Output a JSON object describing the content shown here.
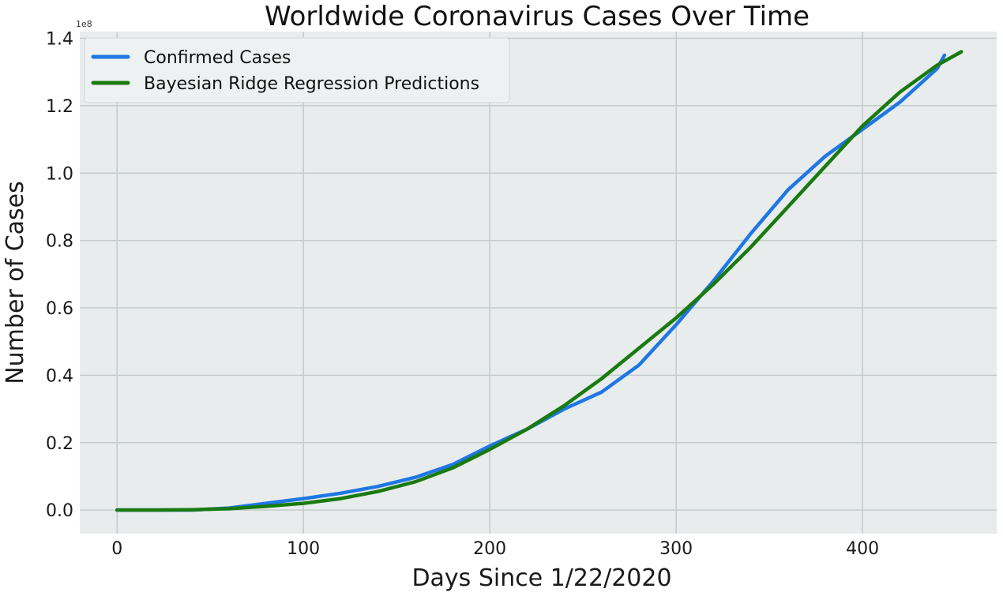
{
  "chart_data": {
    "type": "line",
    "title": "Worldwide Coronavirus Cases Over Time",
    "xlabel": "Days Since 1/22/2020",
    "ylabel": "Number of Cases",
    "y_exponent_label": "1e8",
    "xlim": [
      -20,
      472
    ],
    "ylim": [
      -0.07,
      1.42
    ],
    "y_scale_factor": 100000000,
    "xticks": [
      0,
      100,
      200,
      300,
      400
    ],
    "xtick_labels": [
      "0",
      "100",
      "200",
      "300",
      "400"
    ],
    "yticks": [
      0.0,
      0.2,
      0.4,
      0.6,
      0.8,
      1.0,
      1.2,
      1.4
    ],
    "ytick_labels": [
      "0.0",
      "0.2",
      "0.4",
      "0.6",
      "0.8",
      "1.0",
      "1.2",
      "1.4"
    ],
    "grid": true,
    "legend_position": "top-left",
    "series": [
      {
        "name": "Confirmed Cases",
        "color": "#1f77e4",
        "x": [
          0,
          20,
          40,
          60,
          80,
          100,
          120,
          140,
          160,
          180,
          200,
          220,
          240,
          260,
          280,
          300,
          320,
          340,
          360,
          380,
          400,
          420,
          440,
          444
        ],
        "y": [
          0.0,
          0.0,
          0.0,
          0.006,
          0.02,
          0.034,
          0.05,
          0.07,
          0.097,
          0.135,
          0.19,
          0.24,
          0.3,
          0.35,
          0.43,
          0.55,
          0.68,
          0.82,
          0.95,
          1.05,
          1.13,
          1.21,
          1.31,
          1.35
        ]
      },
      {
        "name": "Bayesian Ridge Regression Predictions",
        "color": "#197a10",
        "x": [
          0,
          20,
          40,
          60,
          80,
          100,
          120,
          140,
          160,
          180,
          200,
          220,
          240,
          260,
          280,
          300,
          320,
          340,
          360,
          380,
          400,
          420,
          440,
          453
        ],
        "y": [
          0.0,
          0.0,
          0.001,
          0.004,
          0.011,
          0.02,
          0.034,
          0.055,
          0.084,
          0.125,
          0.18,
          0.24,
          0.31,
          0.39,
          0.48,
          0.57,
          0.67,
          0.78,
          0.9,
          1.02,
          1.14,
          1.24,
          1.32,
          1.36
        ]
      }
    ]
  }
}
